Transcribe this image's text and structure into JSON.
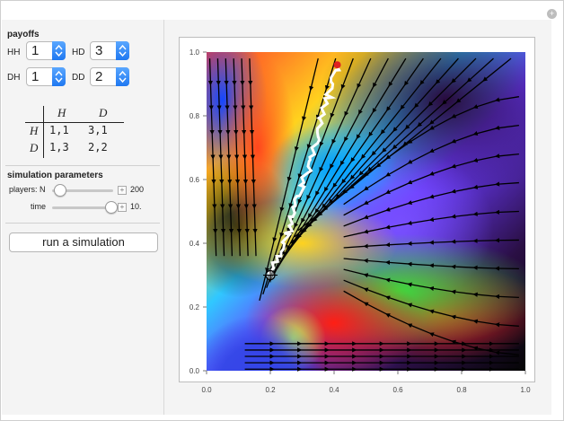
{
  "controls": {
    "payoffs_title": "payoffs",
    "hh_label": "HH",
    "hh_value": "1",
    "hd_label": "HD",
    "hd_value": "3",
    "dh_label": "DH",
    "dh_value": "1",
    "dd_label": "DD",
    "dd_value": "2"
  },
  "payoff_table": {
    "col_h": "H",
    "col_d": "D",
    "row_h": "H",
    "row_d": "D",
    "hh": "1,1",
    "hd": "3,1",
    "dh": "1,3",
    "dd": "2,2"
  },
  "simulation": {
    "title": "simulation parameters",
    "players_label": "players: N",
    "players_value": "200",
    "players_fraction": 0.12,
    "time_label": "time",
    "time_value": "10.",
    "time_fraction": 0.95,
    "run_button": "run a simulation"
  },
  "plot": {
    "x_ticks": [
      "0.0",
      "0.2",
      "0.4",
      "0.6",
      "0.8",
      "1.0"
    ],
    "y_ticks": [
      "0.0",
      "0.2",
      "0.4",
      "0.6",
      "0.8",
      "1.0"
    ],
    "xlim": [
      0,
      1
    ],
    "ylim": [
      0,
      1
    ],
    "start_point": [
      0.2,
      0.3
    ],
    "end_point": [
      0.41,
      0.96
    ]
  },
  "icons": {
    "reset": "reset-icon",
    "stepper": "stepper-arrows-icon",
    "start_marker": "crosshair-icon"
  },
  "colors": {
    "accent": "#1f78f1",
    "trajectory": "#ffffff",
    "streamline": "#000000",
    "end_marker": "#e02020"
  }
}
